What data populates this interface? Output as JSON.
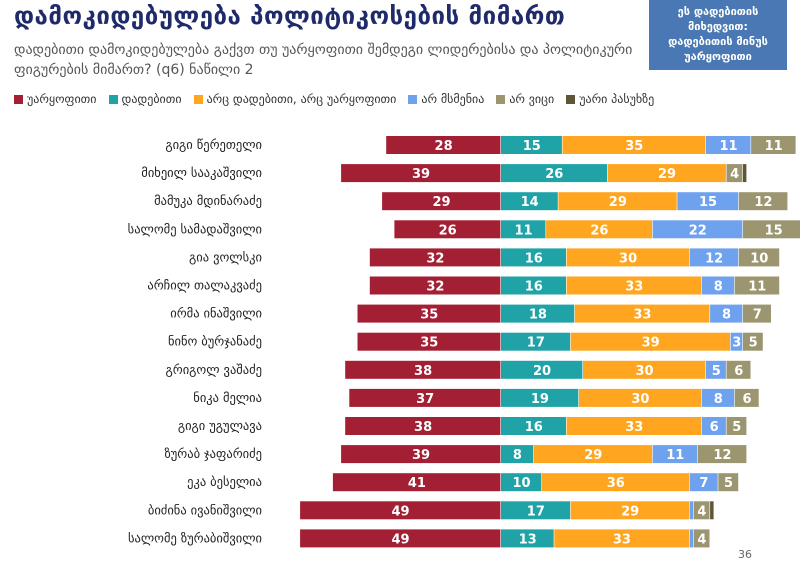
{
  "title": "დამოკიდებულება პოლიტიკოსების მიმართ",
  "subtitle": "დადებითი დამოკიდებულება გაქვთ თუ უარყოფითი შემდეგი ლიდერებისა და პოლიტიკური ფიგურების მიმართ? (q6) ნაწილი 2",
  "note_box": "ეს დადებითის მიხედვით: დადებითის მინუს უარყოფითი",
  "page_number": "36",
  "colors": {
    "negative": "#a31f34",
    "positive": "#1fa3a6",
    "neither": "#ffa51f",
    "dont_understand": "#6fa2ee",
    "dont_know": "#9b9670",
    "refused": "#5f5638"
  },
  "chart_data": {
    "type": "bar",
    "orientation": "horizontal",
    "stacked": true,
    "title": "დამოკიდებულება პოლიტიკოსების მიმართ",
    "categories": [
      "გიგი წერეთელი",
      "მიხეილ სააკაშვილი",
      "მამუკა მდინარაძე",
      "სალომე სამადაშვილი",
      "გია ვოლსკი",
      "არჩილ თალაკვაძე",
      "ირმა ინაშვილი",
      "ნინო ბურჯანაძე",
      "გრიგოლ ვაშაძე",
      "ნიკა მელია",
      "გიგი უგულავა",
      "ზურაბ ჯაფარიძე",
      "ეკა ბესელია",
      "ბიძინა ივანიშვილი",
      "სალომე ზურაბიშვილი"
    ],
    "series": [
      {
        "name": "უარყოფითი",
        "color_key": "negative",
        "values": [
          28,
          39,
          29,
          26,
          32,
          32,
          35,
          35,
          38,
          37,
          38,
          39,
          41,
          49,
          49
        ]
      },
      {
        "name": "დადებითი",
        "color_key": "positive",
        "values": [
          15,
          26,
          14,
          11,
          16,
          16,
          18,
          17,
          20,
          19,
          16,
          8,
          10,
          17,
          13
        ]
      },
      {
        "name": "არც დადებითი, არც უარყოფითი",
        "color_key": "neither",
        "values": [
          35,
          29,
          29,
          26,
          30,
          33,
          33,
          39,
          30,
          30,
          33,
          29,
          36,
          29,
          33
        ]
      },
      {
        "name": "არ მსმენია",
        "color_key": "dont_understand",
        "values": [
          11,
          0,
          15,
          22,
          12,
          8,
          8,
          3,
          5,
          8,
          6,
          11,
          7,
          1,
          1
        ]
      },
      {
        "name": "არ ვიცი",
        "color_key": "dont_know",
        "values": [
          11,
          4,
          12,
          15,
          10,
          11,
          7,
          5,
          6,
          6,
          5,
          12,
          5,
          4,
          4
        ]
      },
      {
        "name": "უარი პასუხზე",
        "color_key": "refused",
        "values": [
          0,
          1,
          0,
          0,
          0,
          0,
          0,
          0,
          0,
          0,
          0,
          0,
          0,
          1,
          0
        ]
      }
    ],
    "label_min": 3,
    "diverging": true
  }
}
